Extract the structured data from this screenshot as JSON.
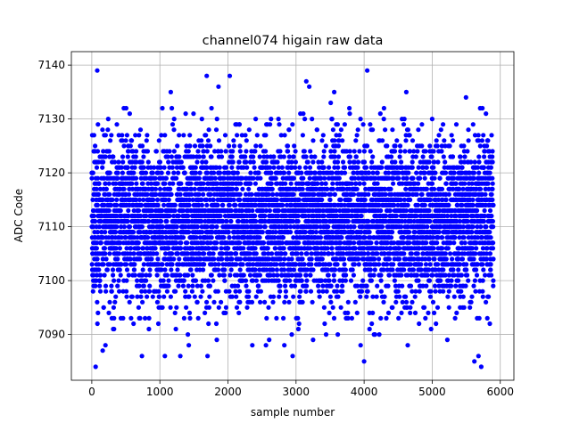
{
  "chart_data": {
    "type": "scatter",
    "title": "channel074 higain raw data",
    "xlabel": "sample number",
    "ylabel": "ADC Code",
    "xlim": [
      -300,
      6200
    ],
    "ylim": [
      7081.5,
      7142.5
    ],
    "xticks": [
      0,
      1000,
      2000,
      3000,
      4000,
      5000,
      6000
    ],
    "xtick_labels": [
      "0",
      "1000",
      "2000",
      "3000",
      "4000",
      "5000",
      "6000"
    ],
    "yticks": [
      7090,
      7100,
      7110,
      7120,
      7130,
      7140
    ],
    "ytick_labels": [
      "7090",
      "7100",
      "7110",
      "7120",
      "7130",
      "7140"
    ],
    "grid": true,
    "marker_color": "#0000ff",
    "series": [
      {
        "n_points": 5900,
        "x_range": [
          0,
          5900
        ],
        "mean": 7111,
        "std": 7.5,
        "value_range": [
          7084,
          7139
        ],
        "outliers": [
          [
            80,
            7139
          ],
          [
            3150,
            7137
          ],
          [
            1160,
            7135
          ],
          [
            4620,
            7135
          ],
          [
            160,
            7087
          ],
          [
            200,
            7088
          ],
          [
            1300,
            7086
          ],
          [
            1700,
            7086
          ],
          [
            2950,
            7086
          ],
          [
            4000,
            7085
          ],
          [
            5620,
            7085
          ],
          [
            5720,
            7084
          ],
          [
            5680,
            7086
          ],
          [
            4640,
            7088
          ],
          [
            3250,
            7089
          ]
        ]
      }
    ]
  }
}
